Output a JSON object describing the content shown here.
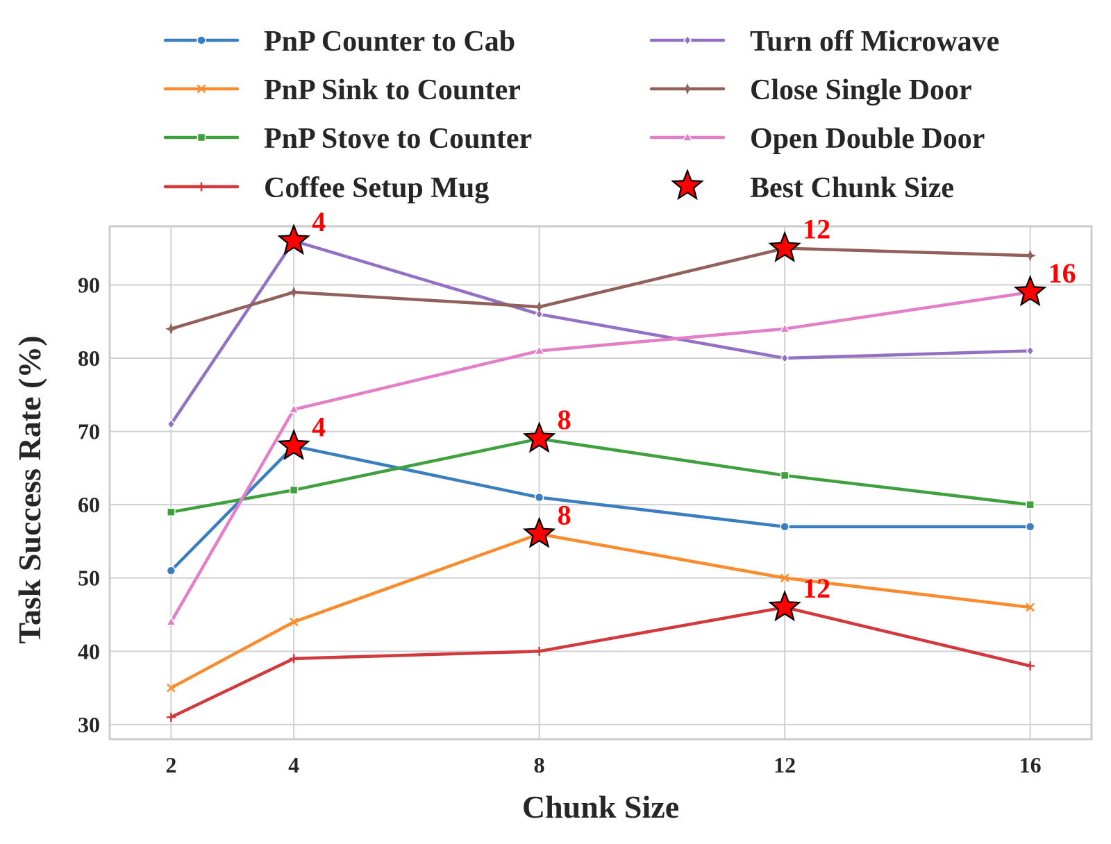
{
  "chart_data": {
    "type": "line",
    "xlabel": "Chunk Size",
    "ylabel": "Task Success Rate (%)",
    "x": [
      2,
      4,
      8,
      12,
      16
    ],
    "xlim": [
      1,
      17
    ],
    "ylim": [
      28,
      98
    ],
    "xticks": [
      "2",
      "4",
      "8",
      "12",
      "16"
    ],
    "yticks": [
      "30",
      "40",
      "50",
      "60",
      "70",
      "80",
      "90"
    ],
    "grid": true,
    "legend": "top, two columns",
    "series": [
      {
        "name": "PnP Counter to Cab",
        "color": "#3a7ebf",
        "marker": "circle",
        "values": [
          51,
          68,
          61,
          57,
          57
        ]
      },
      {
        "name": "PnP Sink to Counter",
        "color": "#fa8c2e",
        "marker": "x",
        "values": [
          35,
          44,
          56,
          50,
          46
        ]
      },
      {
        "name": "PnP Stove to Counter",
        "color": "#3ea13e",
        "marker": "square",
        "values": [
          59,
          62,
          69,
          64,
          60
        ]
      },
      {
        "name": "Coffee Setup Mug",
        "color": "#d1393c",
        "marker": "plus",
        "values": [
          31,
          39,
          40,
          46,
          38
        ]
      },
      {
        "name": "Turn off Microwave",
        "color": "#9370c4",
        "marker": "diamond",
        "values": [
          71,
          96,
          86,
          80,
          81
        ]
      },
      {
        "name": "Close Single Door",
        "color": "#92605a",
        "marker": "star4",
        "values": [
          84,
          89,
          87,
          95,
          94
        ]
      },
      {
        "name": "Open Double Door",
        "color": "#e37fc7",
        "marker": "triangle",
        "values": [
          44,
          73,
          81,
          84,
          89
        ]
      }
    ],
    "best": {
      "name": "Best Chunk Size",
      "color": "#ff0000",
      "points": [
        {
          "x": 4,
          "y": 96,
          "label": "4"
        },
        {
          "x": 4,
          "y": 68,
          "label": "4"
        },
        {
          "x": 8,
          "y": 69,
          "label": "8"
        },
        {
          "x": 8,
          "y": 56,
          "label": "8"
        },
        {
          "x": 12,
          "y": 95,
          "label": "12"
        },
        {
          "x": 12,
          "y": 46,
          "label": "12"
        },
        {
          "x": 16,
          "y": 89,
          "label": "16"
        }
      ]
    }
  }
}
